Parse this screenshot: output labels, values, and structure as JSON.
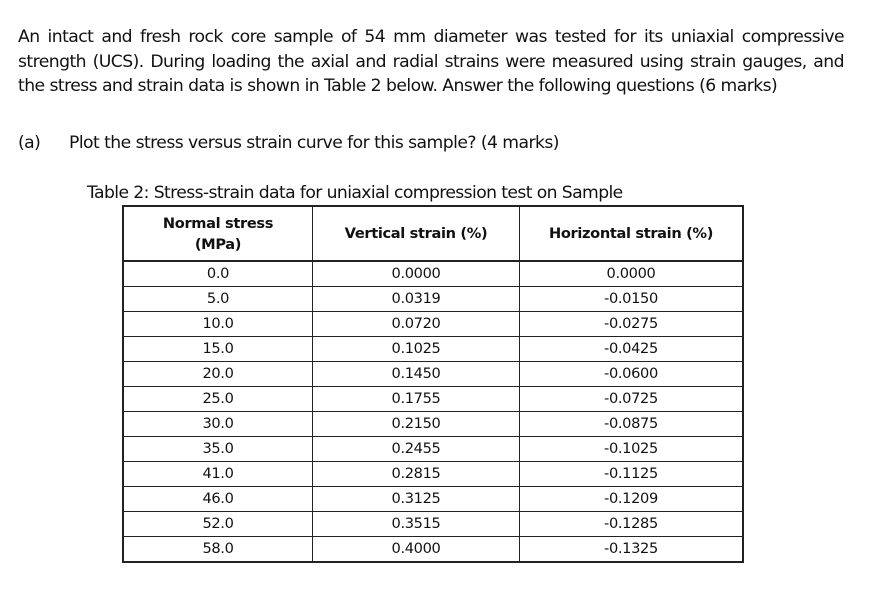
{
  "intro": {
    "text": "An intact and fresh rock core sample of 54 mm diameter was tested for its uniaxial compressive strength (UCS). During loading the axial and radial strains were measured using strain gauges, and the stress and strain data is shown in Table 2 below. Answer the following questions (6 marks)"
  },
  "question_a": {
    "label": "(a)",
    "text": "Plot the stress versus strain curve for this sample? (4 marks)"
  },
  "table": {
    "caption": "Table 2: Stress-strain data for uniaxial compression test on Sample",
    "headers": {
      "stress_line1": "Normal stress",
      "stress_line2": "(MPa)",
      "vertical": "Vertical strain (%)",
      "horizontal": "Horizontal strain (%)"
    },
    "rows": [
      {
        "stress": "0.0",
        "vertical": "0.0000",
        "horizontal": "0.0000"
      },
      {
        "stress": "5.0",
        "vertical": "0.0319",
        "horizontal": "-0.0150"
      },
      {
        "stress": "10.0",
        "vertical": "0.0720",
        "horizontal": "-0.0275"
      },
      {
        "stress": "15.0",
        "vertical": "0.1025",
        "horizontal": "-0.0425"
      },
      {
        "stress": "20.0",
        "vertical": "0.1450",
        "horizontal": "-0.0600"
      },
      {
        "stress": "25.0",
        "vertical": "0.1755",
        "horizontal": "-0.0725"
      },
      {
        "stress": "30.0",
        "vertical": "0.2150",
        "horizontal": "-0.0875"
      },
      {
        "stress": "35.0",
        "vertical": "0.2455",
        "horizontal": "-0.1025"
      },
      {
        "stress": "41.0",
        "vertical": "0.2815",
        "horizontal": "-0.1125"
      },
      {
        "stress": "46.0",
        "vertical": "0.3125",
        "horizontal": "-0.1209"
      },
      {
        "stress": "52.0",
        "vertical": "0.3515",
        "horizontal": "-0.1285"
      },
      {
        "stress": "58.0",
        "vertical": "0.4000",
        "horizontal": "-0.1325"
      }
    ]
  }
}
